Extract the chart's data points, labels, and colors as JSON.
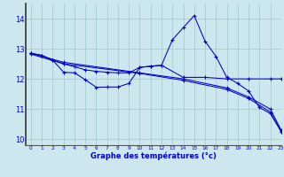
{
  "xlabel": "Graphe des températures (°c)",
  "background_color": "#cce8ee",
  "line_color": "#0000cc",
  "grid_color": "#99cccc",
  "xlim": [
    -0.5,
    23
  ],
  "ylim": [
    9.8,
    14.5
  ],
  "yticks": [
    10,
    11,
    12,
    13,
    14
  ],
  "xticks": [
    0,
    1,
    2,
    3,
    4,
    5,
    6,
    7,
    8,
    9,
    10,
    11,
    12,
    13,
    14,
    15,
    16,
    17,
    18,
    19,
    20,
    21,
    22,
    23
  ],
  "series": [
    {
      "x": [
        0,
        1,
        2,
        3,
        4,
        5,
        6,
        7,
        8,
        9,
        10,
        11,
        12,
        13,
        14,
        15,
        16,
        17,
        18,
        19,
        20,
        21,
        22,
        23
      ],
      "y": [
        12.85,
        12.78,
        12.62,
        12.22,
        12.2,
        11.97,
        11.72,
        11.73,
        11.73,
        11.85,
        12.38,
        12.42,
        12.45,
        13.3,
        13.7,
        14.1,
        13.25,
        12.75,
        12.05,
        11.85,
        11.6,
        11.05,
        10.85,
        10.25
      ]
    },
    {
      "x": [
        0,
        3,
        10,
        14,
        18,
        20,
        22,
        23
      ],
      "y": [
        12.85,
        12.55,
        12.2,
        12.0,
        11.7,
        11.4,
        11.0,
        10.3
      ]
    },
    {
      "x": [
        0,
        3,
        10,
        14,
        18,
        20,
        22,
        23
      ],
      "y": [
        12.82,
        12.5,
        12.18,
        11.95,
        11.65,
        11.35,
        10.9,
        10.25
      ]
    },
    {
      "x": [
        0,
        1,
        2,
        3,
        4,
        5,
        6,
        7,
        8,
        9,
        10,
        11,
        12,
        14,
        16,
        18,
        20,
        22,
        23
      ],
      "y": [
        12.85,
        12.78,
        12.62,
        12.5,
        12.4,
        12.3,
        12.25,
        12.22,
        12.2,
        12.2,
        12.38,
        12.42,
        12.45,
        12.05,
        12.05,
        12.0,
        12.0,
        12.0,
        12.0
      ]
    }
  ]
}
